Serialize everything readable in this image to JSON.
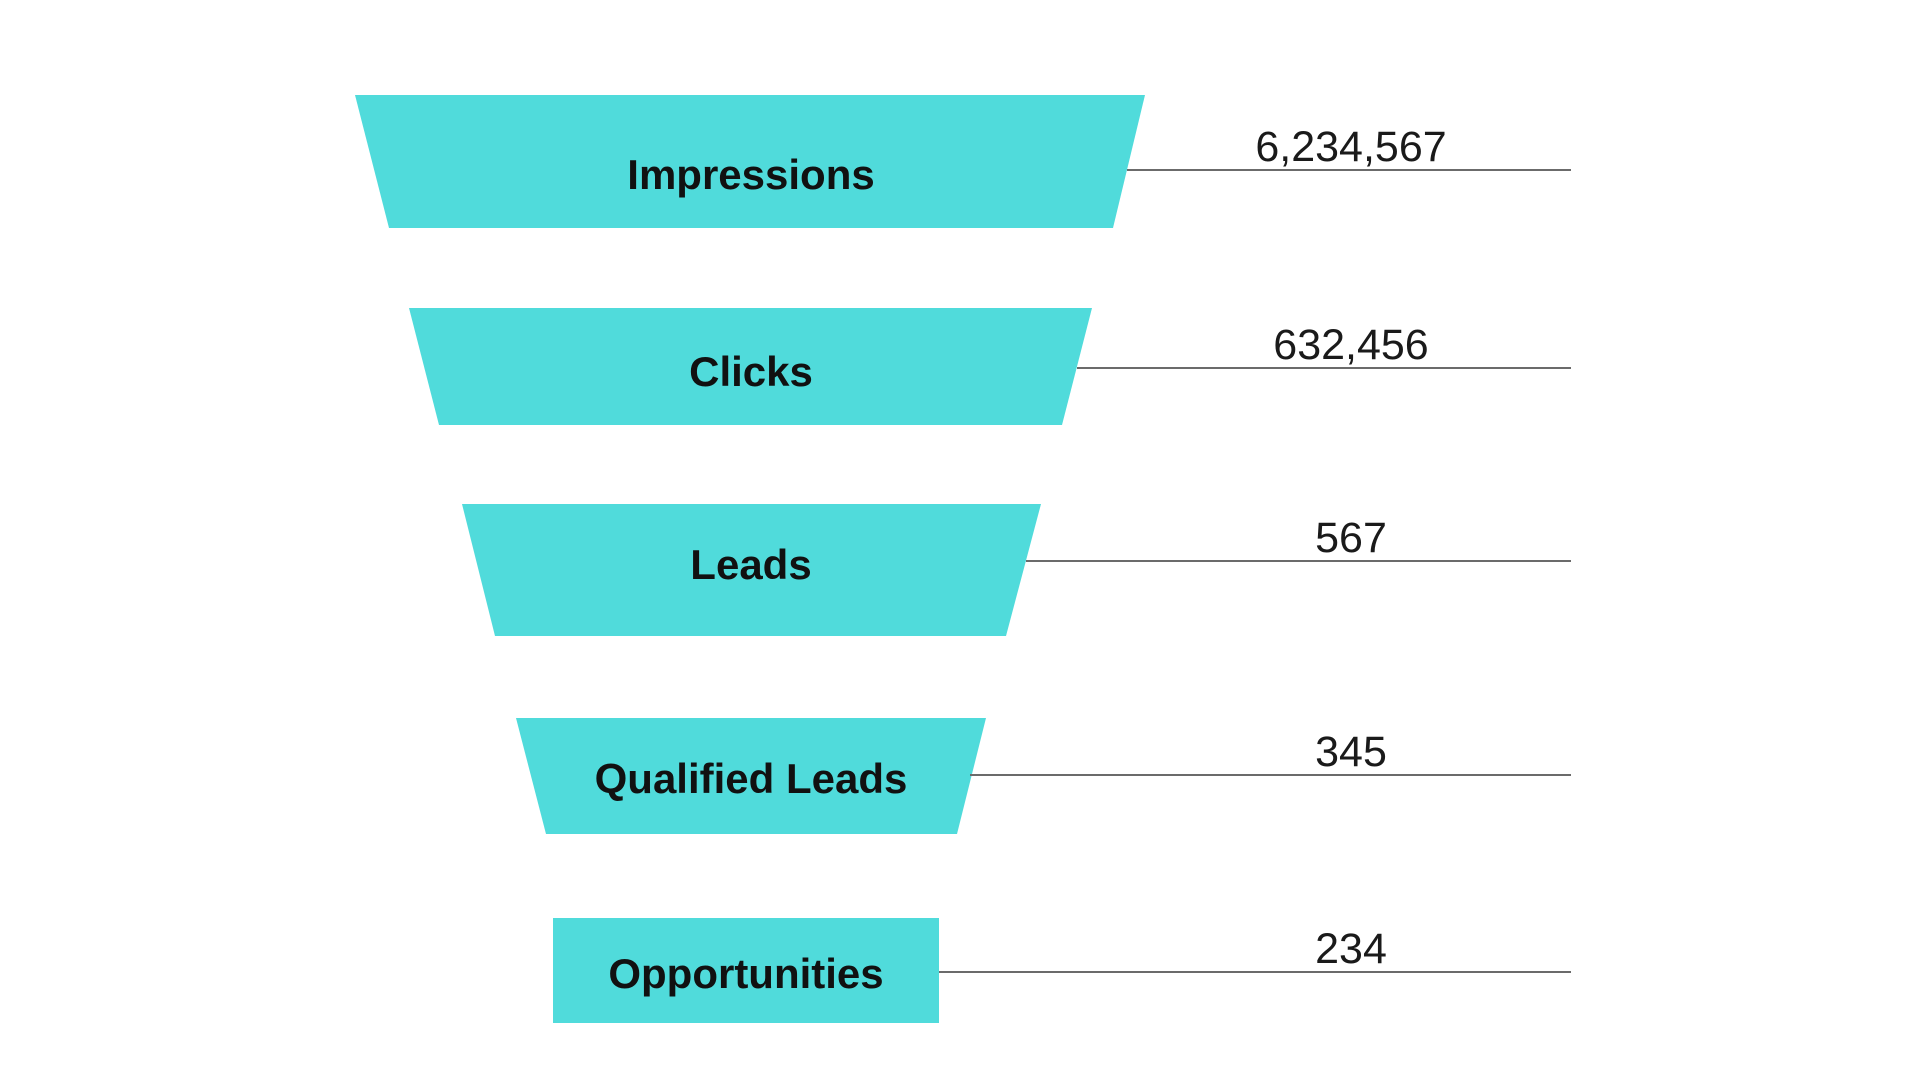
{
  "background": "#ffffff",
  "chart_data": {
    "type": "funnel",
    "orientation": "top-down",
    "stages": [
      {
        "label": "Impressions",
        "value_text": "6,234,567",
        "value": 6234567
      },
      {
        "label": "Clicks",
        "value_text": "632,456",
        "value": 632456
      },
      {
        "label": "Leads",
        "value_text": "567",
        "value": 567
      },
      {
        "label": "Qualified Leads",
        "value_text": "345",
        "value": 345
      },
      {
        "label": "Opportunities",
        "value_text": "234",
        "value": 234
      }
    ],
    "colors": {
      "segment": "#50dbdb",
      "label_text": "#111111",
      "value_text": "#1a1a1a",
      "leader_line": "#6b6b6b",
      "background": "#ffffff"
    },
    "legend": "none",
    "grid": false
  }
}
